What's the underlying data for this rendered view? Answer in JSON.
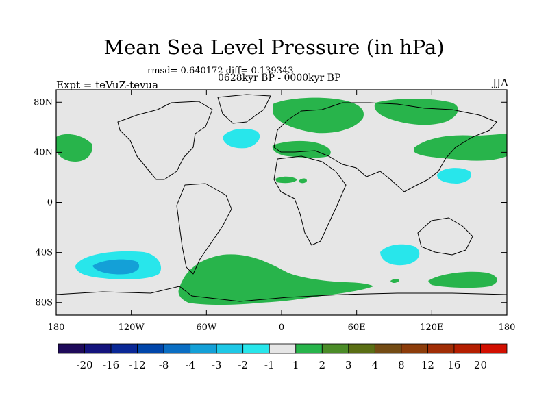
{
  "title": "Mean Sea Level Pressure (in hPa)",
  "stats": "rmsd= 0.640172 diff= 0.139343",
  "period": "0628kyr BP - 0000kyr BP",
  "expt": "Expt = teVuZ-tevua",
  "season": "JJA",
  "lat_ticks": [
    "80N",
    "40N",
    "0",
    "40S",
    "80S"
  ],
  "lon_ticks": [
    "180",
    "120W",
    "60W",
    "0",
    "60E",
    "120E",
    "180"
  ],
  "colorbar": {
    "colors": [
      "#1e0a5a",
      "#14147d",
      "#0a2896",
      "#0046aa",
      "#0a6ec3",
      "#14a0d7",
      "#1ec8e6",
      "#28e6eb",
      "#e6e6e6",
      "#28b44b",
      "#4b8c28",
      "#5a6e14",
      "#734b14",
      "#8c3c0a",
      "#a02d05",
      "#b41e00",
      "#d20f00"
    ],
    "labels": [
      "-20",
      "-16",
      "-12",
      "-8",
      "-4",
      "-3",
      "-2",
      "-1",
      "1",
      "2",
      "3",
      "4",
      "8",
      "12",
      "16",
      "20"
    ]
  },
  "colors": {
    "neutral": "#e6e6e6",
    "positive": "#28b44b",
    "negative_light": "#28e6eb",
    "negative_mid": "#14a0d7"
  }
}
